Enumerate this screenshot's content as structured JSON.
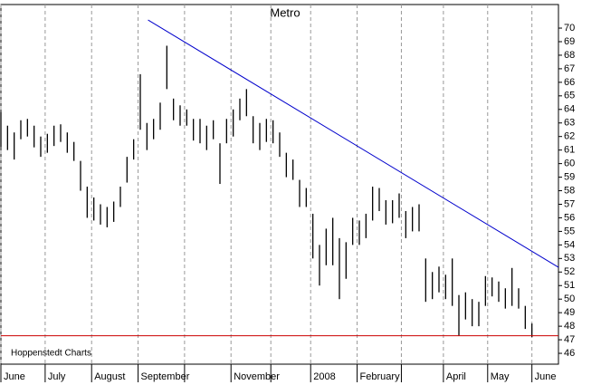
{
  "chart_data": {
    "type": "hilo",
    "title": "Metro",
    "annotation": "Hoppenstedt Charts",
    "x": [
      0,
      3,
      6,
      9,
      12,
      15,
      18,
      21,
      24,
      27,
      30,
      33,
      36,
      39,
      42,
      45,
      48,
      51,
      54,
      57,
      60,
      63,
      66,
      69,
      72,
      75,
      78,
      81,
      84,
      87,
      90,
      93,
      96,
      99,
      102,
      105,
      108,
      111,
      114,
      117,
      120,
      123,
      126,
      129,
      132,
      135,
      138,
      141,
      144,
      147,
      150,
      153,
      156,
      159,
      162,
      165,
      168,
      171,
      174,
      177,
      180,
      183,
      186,
      189,
      192,
      195,
      198,
      201,
      204,
      207,
      210,
      213,
      216,
      219,
      222,
      225,
      228,
      231,
      234,
      237,
      240
    ],
    "series": [
      {
        "color": "#000000",
        "high": [
          63.8,
          62.8,
          62.3,
          63.2,
          63.3,
          62.8,
          62,
          62.2,
          62.8,
          62.9,
          62.3,
          61.6,
          60.2,
          58.3,
          57.5,
          57,
          56.8,
          57.2,
          58.3,
          60.5,
          61.8,
          66.6,
          63,
          63.3,
          64.5,
          68.7,
          64.8,
          64.3,
          64,
          63.3,
          63.3,
          62.8,
          63.2,
          61.5,
          63.3,
          64,
          64.8,
          65.5,
          63.5,
          63,
          63.3,
          63.2,
          62.3,
          60.8,
          60.3,
          58.8,
          58.2,
          56.3,
          54,
          55.2,
          56,
          54.5,
          54.2,
          56,
          55.8,
          56.3,
          58.3,
          58.2,
          57.3,
          57.3,
          57.8,
          56.5,
          56.8,
          57,
          53,
          52,
          52.4,
          51.8,
          53,
          50.3,
          50.5,
          50,
          49.8,
          51.7,
          51.6,
          51.3,
          50.8,
          52.3,
          50.8,
          49.5,
          48.2
        ],
        "low": [
          61.2,
          61,
          60.3,
          61.8,
          62,
          61.2,
          60.5,
          60.8,
          61.3,
          61.6,
          60.8,
          60.2,
          58,
          56,
          55.8,
          55.5,
          55.3,
          55.7,
          56.8,
          58.6,
          60.3,
          62.5,
          61,
          61.8,
          62.5,
          65.5,
          63.2,
          62.8,
          62.8,
          61.7,
          61.5,
          61,
          61.8,
          58.5,
          61.5,
          62,
          63.2,
          63.5,
          61.5,
          61,
          61.6,
          61.5,
          60.5,
          59,
          58.8,
          56.8,
          56.8,
          53,
          51,
          52.5,
          52.5,
          50,
          51.5,
          54,
          54,
          54.5,
          55.8,
          56.5,
          55.5,
          55.6,
          56,
          54.5,
          55,
          55,
          49.8,
          50,
          50.5,
          50,
          49.5,
          47.3,
          48.5,
          48,
          48,
          49.5,
          50.2,
          49.8,
          49.3,
          49.5,
          49.3,
          47.8,
          47.2
        ]
      }
    ],
    "trendline": {
      "color": "#0000cc",
      "x": [
        66.5,
        252
      ],
      "y": [
        70.6,
        52.35
      ]
    },
    "support_line": {
      "color": "#cc0000",
      "value": 47.3
    },
    "xlim": [
      0,
      252
    ],
    "xticks": [
      {
        "value": 0,
        "label": "June"
      },
      {
        "value": 20,
        "label": "July"
      },
      {
        "value": 41,
        "label": "August"
      },
      {
        "value": 62,
        "label": "September"
      },
      {
        "value": 83,
        "label": null
      },
      {
        "value": 104,
        "label": "November"
      },
      {
        "value": 122,
        "label": null
      },
      {
        "value": 140,
        "label": "2008"
      },
      {
        "value": 161,
        "label": "February"
      },
      {
        "value": 181,
        "label": null
      },
      {
        "value": 200,
        "label": "April"
      },
      {
        "value": 220,
        "label": "May"
      },
      {
        "value": 240,
        "label": "June"
      }
    ],
    "ylim": [
      45.2,
      71.74
    ],
    "yticks": [
      46,
      47,
      48,
      49,
      50,
      51,
      52,
      53,
      54,
      55,
      56,
      57,
      58,
      59,
      60,
      61,
      62,
      63,
      64,
      65,
      66,
      67,
      68,
      69,
      70
    ]
  }
}
